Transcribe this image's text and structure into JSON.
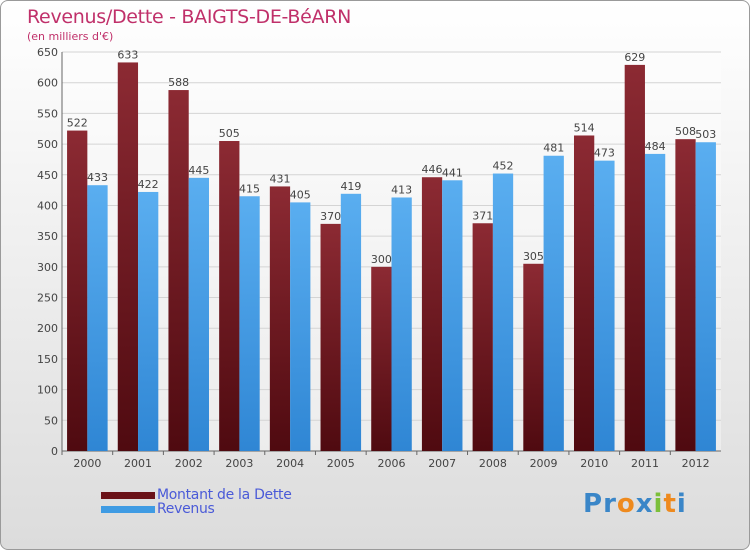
{
  "chart_data": {
    "type": "bar",
    "title": "Revenus/Dette - BAIGTS-DE-BéARN",
    "subtitle": "(en milliers d'€)",
    "xlabel": "",
    "ylabel": "",
    "ylim": [
      0,
      650
    ],
    "yticks": [
      0,
      50,
      100,
      150,
      200,
      250,
      300,
      350,
      400,
      450,
      500,
      550,
      600,
      650
    ],
    "categories": [
      "2000",
      "2001",
      "2002",
      "2003",
      "2004",
      "2005",
      "2006",
      "2007",
      "2008",
      "2009",
      "2010",
      "2011",
      "2012"
    ],
    "series": [
      {
        "name": "Montant de la Dette",
        "color": "#7a1c24",
        "values": [
          522,
          633,
          588,
          505,
          431,
          370,
          300,
          446,
          371,
          305,
          514,
          629,
          508
        ]
      },
      {
        "name": "Revenus",
        "color": "#3f9be3",
        "values": [
          433,
          422,
          445,
          415,
          405,
          419,
          413,
          441,
          452,
          481,
          473,
          484,
          503
        ]
      }
    ],
    "grid": true,
    "legend_position": "bottom-left"
  },
  "logo": {
    "text": "Proxiti",
    "colors": [
      "#3a86c8",
      "#3a86c8",
      "#ee8a1e",
      "#3a86c8",
      "#7cbf3a",
      "#ee8a1e",
      "#3a86c8"
    ]
  }
}
